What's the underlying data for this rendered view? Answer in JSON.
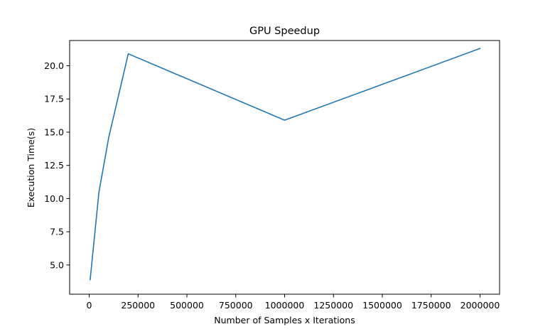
{
  "chart_data": {
    "type": "line",
    "title": "GPU Speedup",
    "xlabel": "Number of Samples x Iterations",
    "ylabel": "Execution Time(s)",
    "xlim": [
      -100000,
      2100000
    ],
    "ylim": [
      2.8,
      21.9
    ],
    "xticks": [
      0,
      250000,
      500000,
      750000,
      1000000,
      1250000,
      1500000,
      1750000,
      2000000
    ],
    "xtick_labels": [
      "0",
      "250000",
      "500000",
      "750000",
      "1000000",
      "1250000",
      "1500000",
      "1750000",
      "2000000"
    ],
    "yticks": [
      5.0,
      7.5,
      10.0,
      12.5,
      15.0,
      17.5,
      20.0
    ],
    "ytick_labels": [
      "5.0",
      "7.5",
      "10.0",
      "12.5",
      "15.0",
      "17.5",
      "20.0"
    ],
    "grid": false,
    "series": [
      {
        "color": "#1f77b4",
        "x": [
          5000,
          50000,
          100000,
          200000,
          1000000,
          2000000
        ],
        "y": [
          3.9,
          10.5,
          14.6,
          20.9,
          15.9,
          21.3
        ]
      }
    ]
  }
}
